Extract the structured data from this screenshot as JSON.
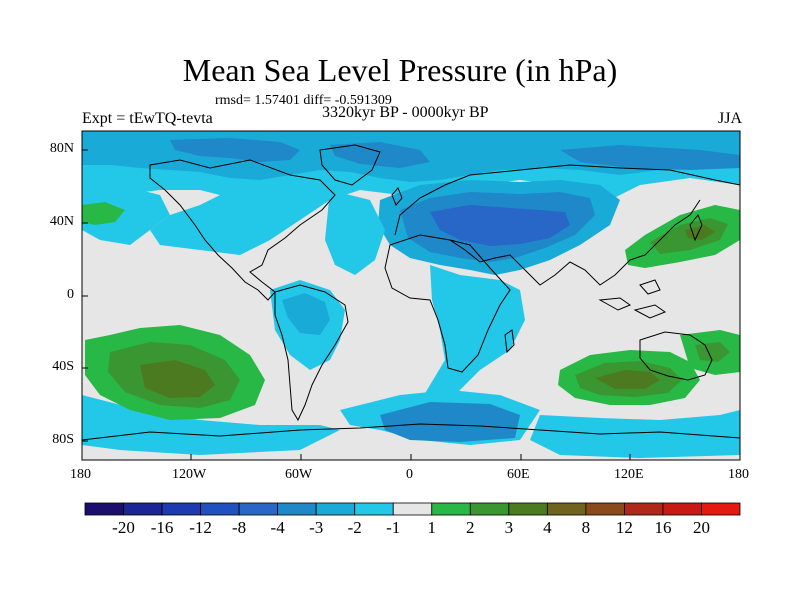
{
  "title": "Mean Sea Level Pressure (in hPa)",
  "stats": "rmsd= 1.57401  diff= -0.591309",
  "experiment": "Expt = tEwTQ-tevta",
  "period": "3320kyr BP - 0000kyr BP",
  "season": "JJA",
  "lat_labels": [
    "80N",
    "40N",
    "0",
    "40S",
    "80S"
  ],
  "lon_labels": [
    "180",
    "120W",
    "60W",
    "0",
    "60E",
    "120E",
    "180"
  ],
  "legend": {
    "colors": [
      "#1a0f6e",
      "#1d2596",
      "#1f3ab0",
      "#2150c0",
      "#2866c8",
      "#1e88c8",
      "#1aaad8",
      "#23c8e8",
      "#e6e6e6",
      "#28b846",
      "#3a9630",
      "#4c7a20",
      "#6e6420",
      "#8a4a1a",
      "#b0281a",
      "#c81a14",
      "#e41a10"
    ],
    "labels": [
      "-20",
      "-16",
      "-12",
      "-8",
      "-4",
      "-3",
      "-2",
      "-1",
      "1",
      "2",
      "3",
      "4",
      "8",
      "12",
      "16",
      "20"
    ]
  },
  "colors": {
    "land_bg": "#e6e6e6",
    "neg1": "#23c8e8",
    "neg2": "#1aaad8",
    "neg3": "#1e88c8",
    "neg4": "#2866c8",
    "pos1": "#28b846",
    "pos2": "#3a9630",
    "pos3": "#4c7a20",
    "coast": "#000000"
  }
}
